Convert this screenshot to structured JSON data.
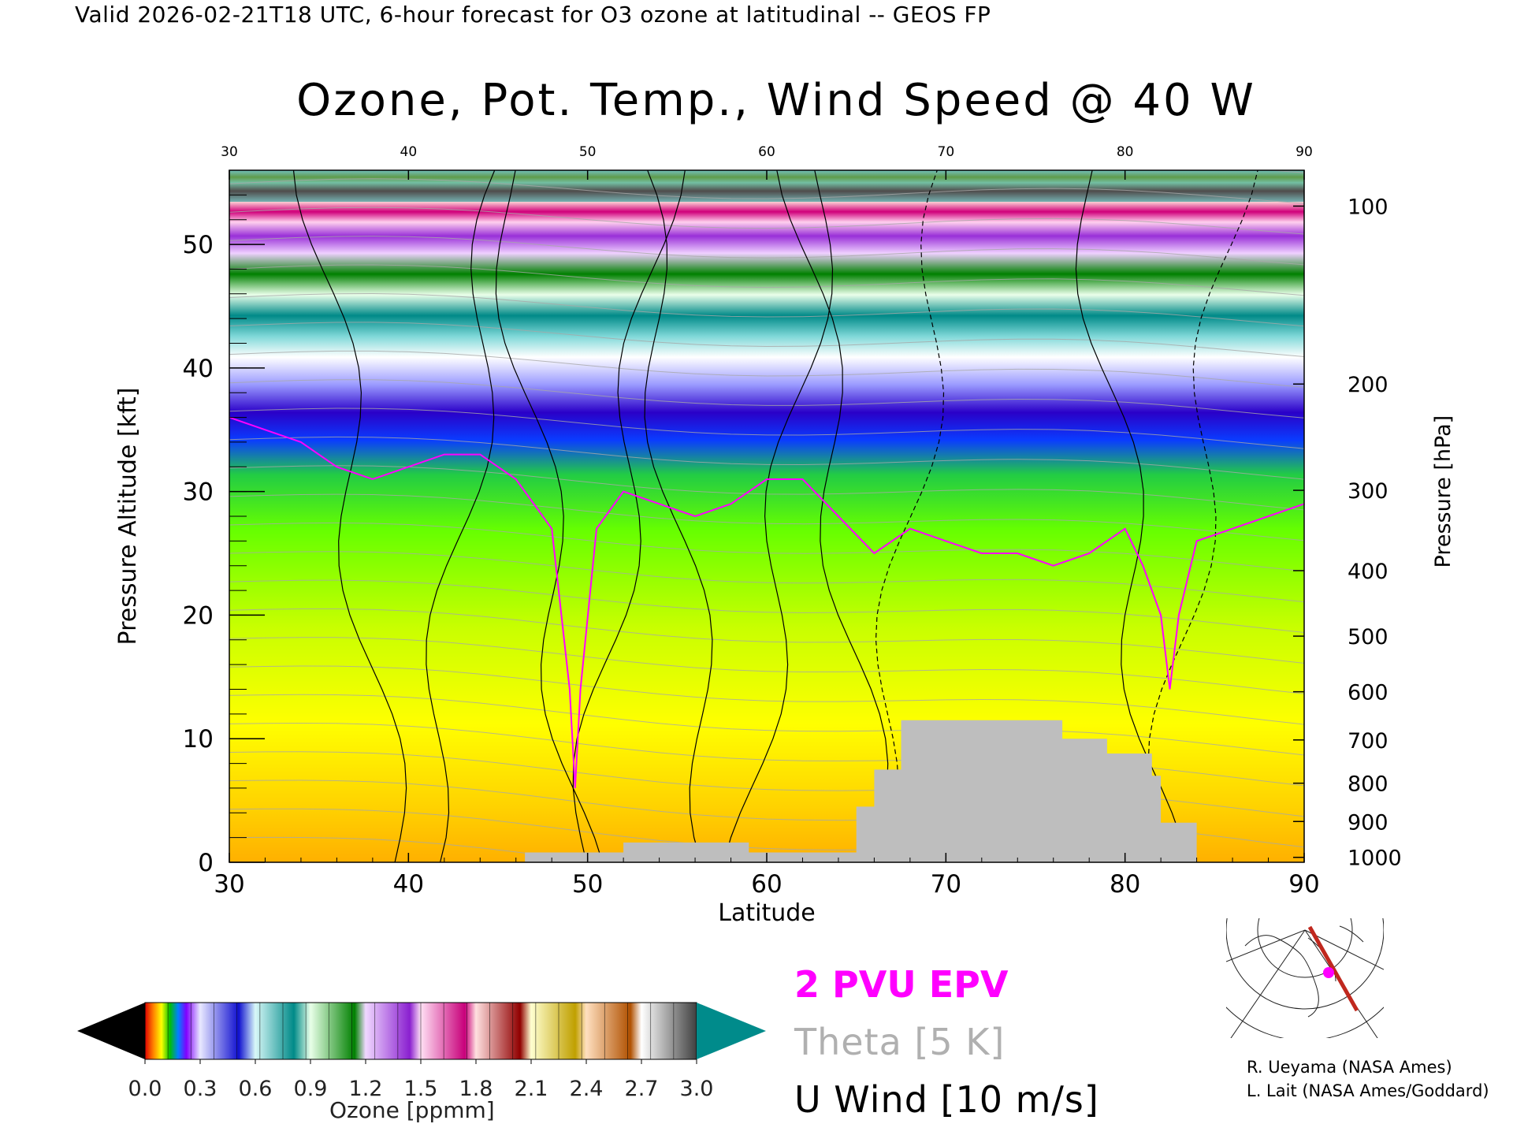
{
  "header": "Valid 2026-02-21T18 UTC, 6-hour forecast for O3 ozone at latitudinal -- GEOS FP",
  "chart_data": {
    "type": "heatmap",
    "title": "Ozone, Pot. Temp., Wind Speed @ 40 W",
    "xlabel": "Latitude",
    "ylabel_left": "Pressure Altitude [kft]",
    "ylabel_right": "Pressure [hPa]",
    "xlim": [
      30,
      90
    ],
    "ylim": [
      0,
      56
    ],
    "x_ticks": [
      "30",
      "40",
      "50",
      "60",
      "70",
      "80",
      "90"
    ],
    "y_ticks_left": [
      "0",
      "10",
      "20",
      "30",
      "40",
      "50"
    ],
    "y_ticks_right": [
      "1000",
      "900",
      "800",
      "700",
      "600",
      "500",
      "400",
      "300",
      "200",
      "100"
    ],
    "y_ticks_right_kft": [
      0.4,
      3.3,
      6.4,
      9.9,
      13.8,
      18.3,
      23.6,
      30.1,
      38.7,
      53.1
    ],
    "tropopause_kft": [
      [
        30,
        36
      ],
      [
        32,
        35
      ],
      [
        34,
        34
      ],
      [
        36,
        32
      ],
      [
        38,
        31
      ],
      [
        40,
        32
      ],
      [
        42,
        33
      ],
      [
        44,
        33
      ],
      [
        46,
        31
      ],
      [
        48,
        27
      ],
      [
        49,
        14
      ],
      [
        49.3,
        6
      ],
      [
        49.6,
        14
      ],
      [
        50.5,
        27
      ],
      [
        52,
        30
      ],
      [
        54,
        29
      ],
      [
        56,
        28
      ],
      [
        58,
        29
      ],
      [
        60,
        31
      ],
      [
        62,
        31
      ],
      [
        64,
        28
      ],
      [
        66,
        25
      ],
      [
        68,
        27
      ],
      [
        70,
        26
      ],
      [
        72,
        25
      ],
      [
        74,
        25
      ],
      [
        76,
        24
      ],
      [
        78,
        25
      ],
      [
        80,
        27
      ],
      [
        81,
        24
      ],
      [
        82,
        20
      ],
      [
        82.5,
        14
      ],
      [
        83,
        20
      ],
      [
        84,
        26
      ],
      [
        86,
        27
      ],
      [
        88,
        28
      ],
      [
        90,
        29
      ]
    ],
    "terrain_kft": [
      [
        30,
        0
      ],
      [
        46.5,
        0
      ],
      [
        46.5,
        0.8
      ],
      [
        52,
        0.8
      ],
      [
        52,
        1.6
      ],
      [
        59,
        1.6
      ],
      [
        59,
        0.8
      ],
      [
        65,
        0.8
      ],
      [
        65,
        4.5
      ],
      [
        66,
        4.5
      ],
      [
        66,
        7.5
      ],
      [
        67.5,
        7.5
      ],
      [
        67.5,
        11.5
      ],
      [
        76.5,
        11.5
      ],
      [
        76.5,
        10
      ],
      [
        79,
        10
      ],
      [
        79,
        8.8
      ],
      [
        81.5,
        8.8
      ],
      [
        81.5,
        7
      ],
      [
        82,
        7
      ],
      [
        82,
        3.2
      ],
      [
        84,
        3.2
      ],
      [
        84,
        0
      ],
      [
        90,
        0
      ]
    ],
    "colorbar": {
      "label": "Ozone [ppmm]",
      "ticks": [
        "0.0",
        "0.3",
        "0.6",
        "0.9",
        "1.2",
        "1.5",
        "1.8",
        "2.1",
        "2.4",
        "2.7",
        "3.0"
      ],
      "range": [
        0,
        3.0
      ]
    },
    "legend": [
      "2 PVU EPV",
      "Theta [5 K]",
      "U Wind [10 m/s]"
    ]
  },
  "credits": [
    "R. Ueyama (NASA Ames)",
    "L. Lait (NASA Ames/Goddard)"
  ],
  "colors": {
    "pvu": "#ff00ff",
    "theta": "#a8a8a8",
    "wind": "#000000",
    "terrain": "#bebebe",
    "map_track": "#c0281e"
  }
}
